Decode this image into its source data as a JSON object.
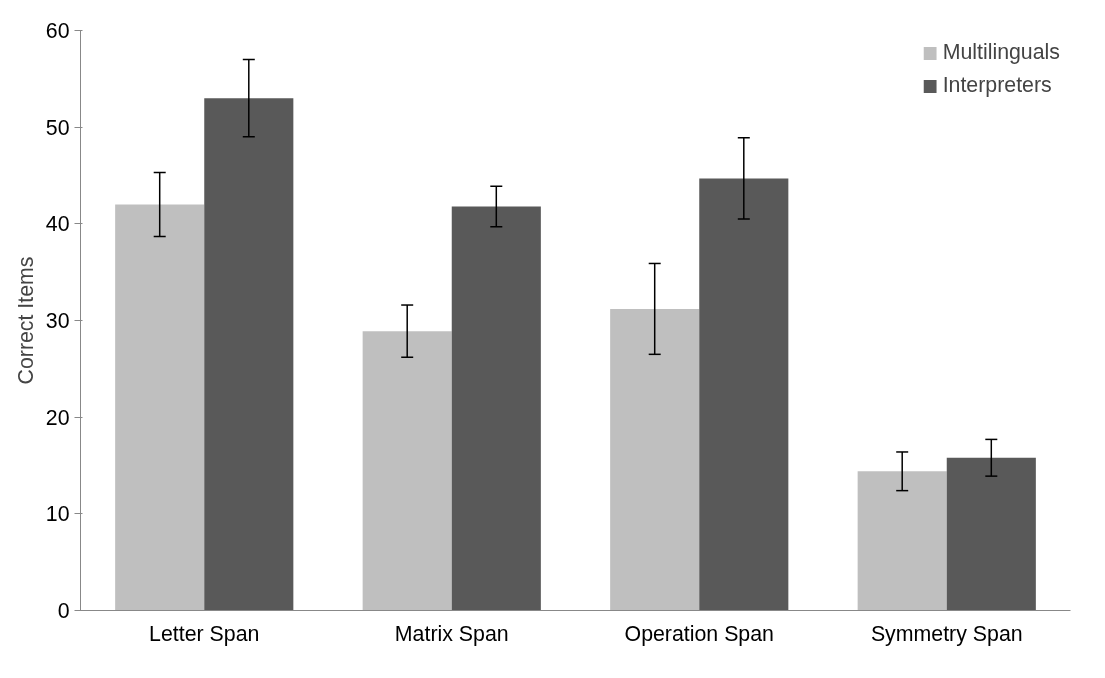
{
  "chart_data": {
    "type": "bar",
    "ylabel": "Correct Items",
    "categories": [
      "Letter Span",
      "Matrix Span",
      "Operation Span",
      "Symmetry Span"
    ],
    "series": [
      {
        "name": "Multilinguals",
        "color": "#bfbfbf",
        "values": [
          42,
          28.9,
          31.2,
          14.4
        ],
        "errors": [
          3.3,
          2.7,
          4.7,
          2
        ]
      },
      {
        "name": "Interpreters",
        "color": "#595959",
        "values": [
          53,
          41.8,
          44.7,
          15.8
        ],
        "errors": [
          4,
          2.1,
          4.2,
          1.9
        ]
      }
    ],
    "ylim": [
      0,
      60
    ],
    "yticks": [
      0,
      10,
      20,
      30,
      40,
      50,
      60
    ],
    "grid": false,
    "legend": "top right"
  }
}
